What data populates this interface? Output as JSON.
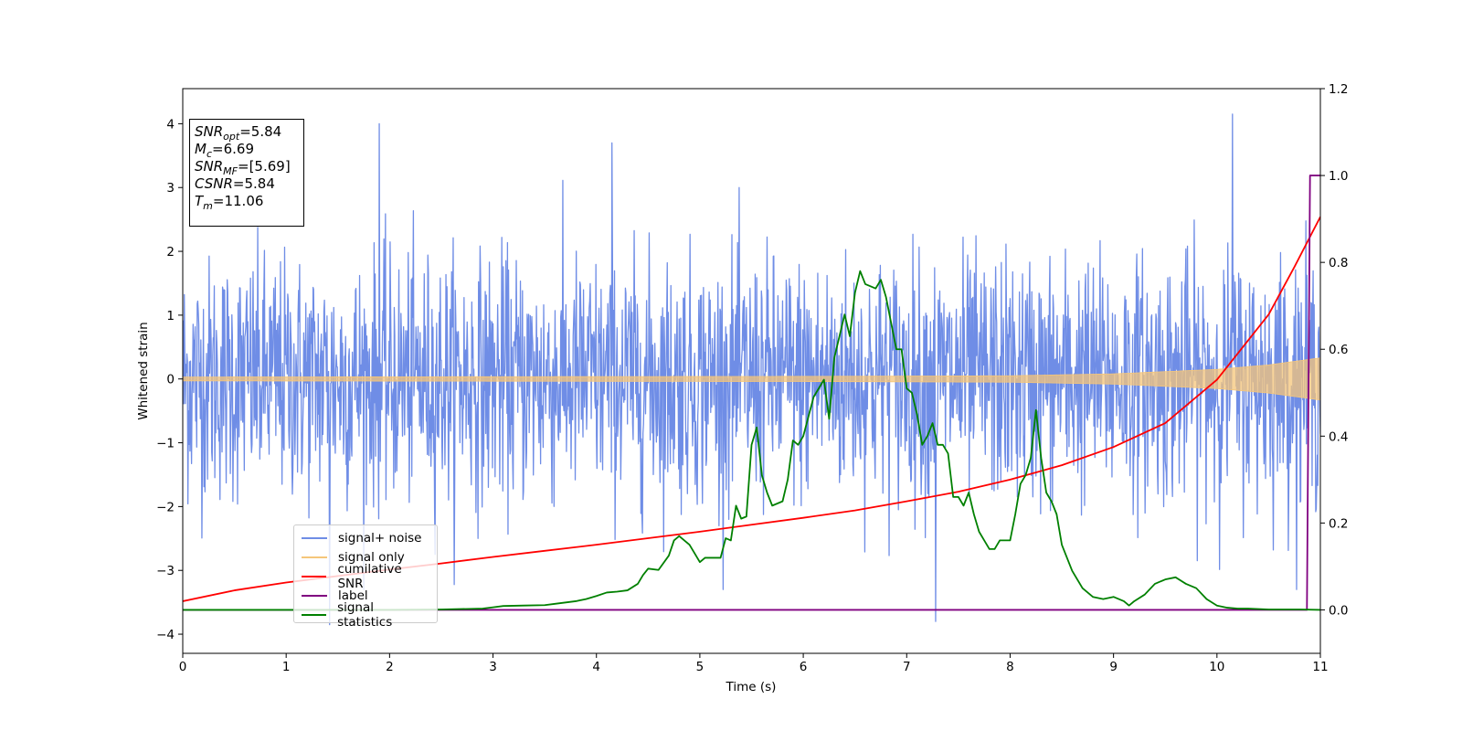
{
  "chart_data": {
    "type": "line",
    "title": "",
    "xlabel": "Time (s)",
    "ylabel": "Whitened strain",
    "xlim": [
      0,
      11
    ],
    "ylim": [
      -4.3,
      4.55
    ],
    "y2lim": [
      -0.1,
      1.2
    ],
    "xticks": [
      "0",
      "1",
      "2",
      "3",
      "4",
      "5",
      "6",
      "7",
      "8",
      "9",
      "10",
      "11"
    ],
    "yticks": [
      "−4",
      "−3",
      "−2",
      "−1",
      "0",
      "1",
      "2",
      "3",
      "4"
    ],
    "y2ticks": [
      "0.0",
      "0.2",
      "0.4",
      "0.6",
      "0.8",
      "1.0",
      "1.2"
    ],
    "grid": false,
    "legend_position": "lower-left",
    "series": [
      {
        "name": "signal+ noise",
        "color": "#6f8de6",
        "axis": "left",
        "note_shape": "dense gaussian-like noise, std approx 1",
        "peaks": [
          {
            "x": 1.42,
            "y": -3.85
          },
          {
            "x": 1.9,
            "y": 4.0
          },
          {
            "x": 4.15,
            "y": 3.7
          },
          {
            "x": 7.28,
            "y": -3.8
          },
          {
            "x": 10.15,
            "y": 4.15
          }
        ]
      },
      {
        "name": "signal only",
        "color": "#f5c67a",
        "axis": "left",
        "envelope": [
          {
            "x": 0,
            "amp": 0.03
          },
          {
            "x": 6,
            "amp": 0.04
          },
          {
            "x": 8,
            "amp": 0.05
          },
          {
            "x": 9,
            "amp": 0.08
          },
          {
            "x": 10,
            "amp": 0.15
          },
          {
            "x": 10.5,
            "amp": 0.22
          },
          {
            "x": 11,
            "amp": 0.33
          }
        ]
      },
      {
        "name": "cumilative SNR",
        "color": "#ff0000",
        "axis": "right",
        "x": [
          0,
          0.5,
          1,
          1.5,
          2,
          2.5,
          3,
          3.5,
          4,
          4.5,
          5,
          5.5,
          6,
          6.5,
          7,
          7.5,
          8,
          8.5,
          9,
          9.5,
          10,
          10.5,
          10.75,
          11
        ],
        "values": [
          0.02,
          0.045,
          0.063,
          0.078,
          0.093,
          0.107,
          0.122,
          0.136,
          0.15,
          0.165,
          0.18,
          0.196,
          0.212,
          0.229,
          0.25,
          0.272,
          0.3,
          0.333,
          0.375,
          0.43,
          0.53,
          0.68,
          0.79,
          0.905
        ]
      },
      {
        "name": "label",
        "color": "#800080",
        "axis": "right",
        "x": [
          0,
          10.87,
          10.9,
          11
        ],
        "values": [
          0.0,
          0.0,
          1.0,
          1.0
        ]
      },
      {
        "name": "signal statistics",
        "color": "#008000",
        "axis": "right",
        "x": [
          0,
          2,
          2.5,
          2.9,
          3.0,
          3.1,
          3.3,
          3.5,
          3.6,
          3.8,
          3.9,
          4.0,
          4.1,
          4.2,
          4.3,
          4.4,
          4.45,
          4.5,
          4.6,
          4.7,
          4.75,
          4.8,
          4.9,
          5.0,
          5.05,
          5.1,
          5.2,
          5.25,
          5.3,
          5.35,
          5.4,
          5.45,
          5.5,
          5.55,
          5.6,
          5.65,
          5.7,
          5.8,
          5.85,
          5.9,
          5.95,
          6.0,
          6.1,
          6.2,
          6.25,
          6.3,
          6.35,
          6.4,
          6.45,
          6.5,
          6.55,
          6.6,
          6.7,
          6.75,
          6.8,
          6.85,
          6.9,
          6.95,
          7.0,
          7.05,
          7.1,
          7.15,
          7.2,
          7.25,
          7.3,
          7.35,
          7.4,
          7.45,
          7.5,
          7.55,
          7.6,
          7.65,
          7.7,
          7.75,
          7.8,
          7.85,
          7.9,
          8.0,
          8.05,
          8.1,
          8.15,
          8.2,
          8.25,
          8.3,
          8.35,
          8.4,
          8.45,
          8.5,
          8.55,
          8.6,
          8.7,
          8.8,
          8.9,
          9.0,
          9.1,
          9.15,
          9.2,
          9.3,
          9.4,
          9.5,
          9.6,
          9.7,
          9.8,
          9.9,
          10.0,
          10.1,
          10.2,
          10.3,
          10.5,
          10.8,
          11.0
        ],
        "values": [
          0.0,
          0.0,
          0.001,
          0.003,
          0.006,
          0.009,
          0.01,
          0.011,
          0.014,
          0.02,
          0.025,
          0.032,
          0.04,
          0.042,
          0.045,
          0.06,
          0.08,
          0.095,
          0.092,
          0.125,
          0.16,
          0.17,
          0.15,
          0.11,
          0.12,
          0.12,
          0.12,
          0.165,
          0.16,
          0.24,
          0.21,
          0.215,
          0.38,
          0.42,
          0.31,
          0.27,
          0.24,
          0.25,
          0.3,
          0.39,
          0.38,
          0.4,
          0.49,
          0.53,
          0.44,
          0.58,
          0.63,
          0.68,
          0.63,
          0.73,
          0.78,
          0.75,
          0.74,
          0.76,
          0.72,
          0.66,
          0.6,
          0.6,
          0.51,
          0.5,
          0.45,
          0.38,
          0.4,
          0.43,
          0.38,
          0.38,
          0.36,
          0.26,
          0.26,
          0.24,
          0.27,
          0.22,
          0.18,
          0.16,
          0.14,
          0.14,
          0.16,
          0.16,
          0.22,
          0.29,
          0.31,
          0.35,
          0.46,
          0.35,
          0.27,
          0.25,
          0.22,
          0.15,
          0.12,
          0.09,
          0.05,
          0.03,
          0.025,
          0.03,
          0.02,
          0.01,
          0.02,
          0.035,
          0.06,
          0.07,
          0.075,
          0.06,
          0.05,
          0.025,
          0.01,
          0.005,
          0.003,
          0.003,
          0.001,
          0.001,
          0.0
        ]
      }
    ],
    "annotation": {
      "snr_opt": "=5.84",
      "mc": "=6.69",
      "snr_mf": "=[5.69]",
      "csnr": "=5.84",
      "tm": "=11.06"
    }
  },
  "annotation_labels": {
    "snr_opt": "SNR",
    "snr_opt_sub": "opt",
    "mc": "M",
    "mc_sub": "c",
    "snr_mf": "SNR",
    "snr_mf_sub": "MF",
    "csnr": "CSNR",
    "tm": "T",
    "tm_sub": "m"
  }
}
